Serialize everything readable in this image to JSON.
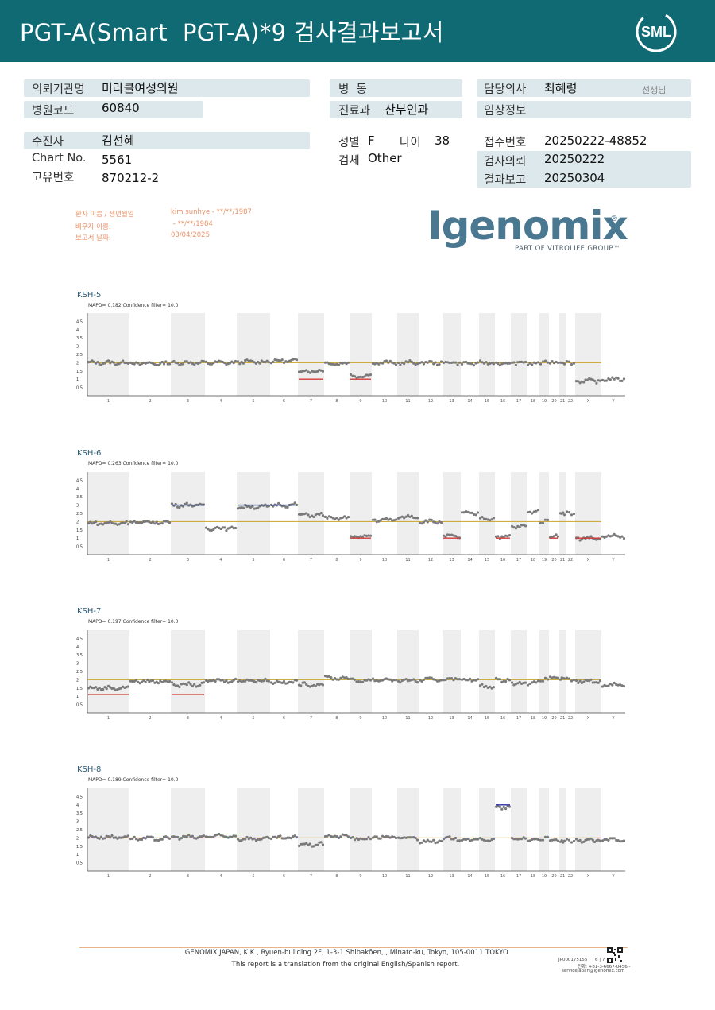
{
  "header": {
    "title": "PGT-A(Smart  PGT-A)*9 검사결과보고서",
    "logo_text": "SML",
    "bg_color": "#0f6a74"
  },
  "info": {
    "institution_label": "의뢰기관명",
    "institution_value": "미라클여성의원",
    "hospital_code_label": "병원코드",
    "hospital_code_value": "60840",
    "ward_label": "병  동",
    "department_label": "진료과",
    "department_value": "산부인과",
    "doctor_label": "담당의사",
    "doctor_value": "최혜령",
    "doctor_suffix": "선생님",
    "clinical_label": "임상정보",
    "patient_label": "수진자",
    "patient_value": "김선혜",
    "chart_label": "Chart No.",
    "chart_value": "5561",
    "id_label": "고유번호",
    "id_value": "870212-2",
    "sex_label": "성별",
    "sex_value": "F",
    "age_label": "나이",
    "age_value": "38",
    "specimen_label": "검체",
    "specimen_value": "Other",
    "receipt_label": "접수번호",
    "receipt_value": "20250222-48852",
    "request_label": "검사의뢰",
    "request_value": "20250222",
    "report_label": "결과보고",
    "report_value": "20250304"
  },
  "patient_block": {
    "name_label": "환자 이름 / 생년월일",
    "name_value": "kim sunhye - **/**/1987",
    "partner_label": "배우자 이름:",
    "partner_value": " - **/**/1984",
    "date_label": "보고서 날짜:",
    "date_value": "03/04/2025"
  },
  "brand": {
    "name": "Igenomix",
    "registered": "®",
    "tagline": "PART OF VITROLIFE GROUP™"
  },
  "chart_data": [
    {
      "type": "scatter",
      "title": "KSH-5",
      "subtitle": "MAPD= 0.182 Confidence filter= 10.0",
      "yticks": [
        "4.5",
        "4",
        "3.5",
        "3",
        "2.5",
        "2",
        "1.5",
        "1",
        "0.5"
      ],
      "ylim": [
        0,
        5
      ],
      "categories": [
        "1",
        "2",
        "3",
        "4",
        "5",
        "6",
        "7",
        "8",
        "9",
        "10",
        "11",
        "12",
        "13",
        "14",
        "15",
        "16",
        "17",
        "18",
        "19",
        "20",
        "21",
        "22",
        "X",
        "Y"
      ],
      "reference_line": 2,
      "series": [
        {
          "values": [
            2.0,
            1.95,
            2.0,
            2.0,
            2.05,
            2.1,
            1.5,
            1.95,
            1.2,
            2.0,
            2.0,
            2.0,
            2.0,
            1.95,
            2.0,
            1.95,
            2.0,
            1.95,
            2.0,
            2.0,
            2.0,
            2.0,
            0.9,
            1.0
          ]
        }
      ],
      "calls": [
        {
          "chromosome": "7",
          "value": 1.0,
          "color": "#d23a3a"
        },
        {
          "chromosome": "9",
          "value": 1.0,
          "color": "#d23a3a"
        }
      ]
    },
    {
      "type": "scatter",
      "title": "KSH-6",
      "subtitle": "MAPD= 0.263 Confidence filter= 10.0",
      "yticks": [
        "4.5",
        "4",
        "3.5",
        "3",
        "2.5",
        "2",
        "1.5",
        "1",
        "0.5"
      ],
      "ylim": [
        0,
        5
      ],
      "categories": [
        "1",
        "2",
        "3",
        "4",
        "5",
        "6",
        "7",
        "8",
        "9",
        "10",
        "11",
        "12",
        "13",
        "14",
        "15",
        "16",
        "17",
        "18",
        "19",
        "20",
        "21",
        "22",
        "X",
        "Y"
      ],
      "reference_line": 2,
      "series": [
        {
          "values": [
            1.9,
            1.95,
            3.0,
            1.6,
            2.9,
            3.0,
            2.4,
            2.2,
            1.1,
            2.1,
            2.3,
            2.0,
            1.1,
            2.5,
            2.2,
            1.1,
            1.7,
            2.6,
            2.0,
            1.1,
            2.5,
            2.5,
            1.0,
            1.1
          ]
        }
      ],
      "calls": [
        {
          "chromosome": "3",
          "value": 3.0,
          "color": "#2a2aa8"
        },
        {
          "chromosome": "5",
          "value": 3.0,
          "color": "#2a2aa8"
        },
        {
          "chromosome": "6",
          "value": 3.0,
          "color": "#2a2aa8"
        },
        {
          "chromosome": "9",
          "value": 1.0,
          "color": "#d23a3a"
        },
        {
          "chromosome": "13",
          "value": 1.0,
          "color": "#d23a3a"
        },
        {
          "chromosome": "16",
          "value": 1.0,
          "color": "#d23a3a"
        },
        {
          "chromosome": "20",
          "value": 1.0,
          "color": "#d23a3a"
        },
        {
          "chromosome": "X",
          "value": 1.0,
          "color": "#d23a3a"
        }
      ]
    },
    {
      "type": "scatter",
      "title": "KSH-7",
      "subtitle": "MAPD= 0.197 Confidence filter= 10.0",
      "yticks": [
        "4.5",
        "4",
        "3.5",
        "3",
        "2.5",
        "2",
        "1.5",
        "1",
        "0.5"
      ],
      "ylim": [
        0,
        5
      ],
      "categories": [
        "1",
        "2",
        "3",
        "4",
        "5",
        "6",
        "7",
        "8",
        "9",
        "10",
        "11",
        "12",
        "13",
        "14",
        "15",
        "16",
        "17",
        "18",
        "19",
        "20",
        "21",
        "22",
        "X",
        "Y"
      ],
      "reference_line": 2,
      "series": [
        {
          "values": [
            1.5,
            1.9,
            1.7,
            1.95,
            1.95,
            1.85,
            1.7,
            2.1,
            1.95,
            2.0,
            1.95,
            2.0,
            2.05,
            2.0,
            1.6,
            2.0,
            1.8,
            1.8,
            2.0,
            2.1,
            2.0,
            2.0,
            1.9,
            1.7
          ]
        }
      ],
      "calls": [
        {
          "chromosome": "1",
          "value": 1.1,
          "color": "#d23a3a"
        },
        {
          "chromosome": "3",
          "value": 1.1,
          "color": "#d23a3a"
        }
      ]
    },
    {
      "type": "scatter",
      "title": "KSH-8",
      "subtitle": "MAPD= 0.189 Confidence filter= 10.0",
      "yticks": [
        "4.5",
        "4",
        "3.5",
        "3",
        "2.5",
        "2",
        "1.5",
        "1",
        "0.5"
      ],
      "ylim": [
        0,
        5
      ],
      "categories": [
        "1",
        "2",
        "3",
        "4",
        "5",
        "6",
        "7",
        "8",
        "9",
        "10",
        "11",
        "12",
        "13",
        "14",
        "15",
        "16",
        "17",
        "18",
        "19",
        "20",
        "21",
        "22",
        "X",
        "Y"
      ],
      "reference_line": 2,
      "series": [
        {
          "values": [
            2.05,
            1.95,
            2.05,
            2.1,
            1.95,
            2.0,
            1.6,
            2.1,
            1.95,
            2.05,
            2.0,
            1.8,
            1.95,
            1.9,
            1.9,
            3.85,
            1.95,
            1.9,
            1.95,
            1.8,
            1.75,
            1.8,
            1.85,
            1.9
          ]
        }
      ],
      "calls": [
        {
          "chromosome": "16",
          "value": 4.0,
          "color": "#2a2aa8"
        }
      ]
    }
  ],
  "footer": {
    "address": "IGENOMIX JAPAN, K.K., Ryuen-building 2F, 1-3-1 Shibakōen, , Minato-ku, Tokyo, 105-0011 TOKYO",
    "note": "This report is a translation from the original English/Spanish report.",
    "doc_id": "JP000175155",
    "page": "6 | 7",
    "phone": "전화:  +81-3-6667-0456  -",
    "email": "servicejapan@igenomix.com"
  }
}
